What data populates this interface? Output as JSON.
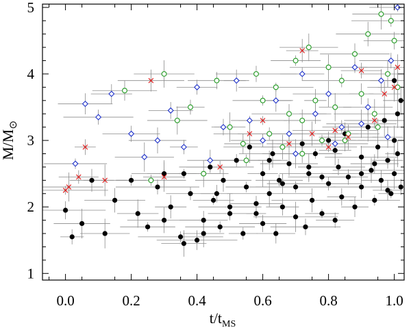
{
  "chart_data": {
    "type": "scatter",
    "title": "",
    "xlabel": "t/t",
    "xlabel_sub": "MS",
    "ylabel": "M/M",
    "ylabel_symbol": "⊙",
    "xlim": [
      -0.07,
      1.03
    ],
    "ylim": [
      0.9,
      5.05
    ],
    "x_ticks": [
      0.0,
      0.2,
      0.4,
      0.6,
      0.8,
      1.0
    ],
    "x_tick_labels": [
      "0.0",
      "0.2",
      "0.4",
      "0.6",
      "0.8",
      "1.0"
    ],
    "y_ticks": [
      1,
      2,
      3,
      4,
      5
    ],
    "y_tick_labels": [
      "1",
      "2",
      "3",
      "4",
      "5"
    ],
    "grid": false,
    "legend": "none",
    "series": [
      {
        "name": "black filled circles",
        "marker": "filled-circle",
        "color": "#000000",
        "x": [
          0.0,
          0.02,
          0.05,
          0.08,
          0.12,
          0.15,
          0.2,
          0.22,
          0.25,
          0.28,
          0.3,
          0.32,
          0.35,
          0.36,
          0.38,
          0.4,
          0.42,
          0.44,
          0.45,
          0.47,
          0.48,
          0.5,
          0.52,
          0.54,
          0.55,
          0.56,
          0.58,
          0.6,
          0.6,
          0.62,
          0.63,
          0.64,
          0.65,
          0.66,
          0.68,
          0.7,
          0.7,
          0.72,
          0.73,
          0.74,
          0.75,
          0.76,
          0.78,
          0.8,
          0.8,
          0.82,
          0.83,
          0.84,
          0.85,
          0.86,
          0.88,
          0.9,
          0.9,
          0.92,
          0.93,
          0.94,
          0.95,
          0.96,
          0.97,
          0.98,
          0.99,
          1.0,
          1.0,
          1.01,
          1.01,
          1.02,
          1.02,
          0.36,
          0.42,
          0.5,
          0.58,
          0.66,
          0.74,
          0.82,
          0.9,
          0.98,
          0.3,
          0.46,
          0.62,
          0.78,
          0.94,
          1.0
        ],
        "y": [
          1.95,
          1.55,
          1.75,
          2.4,
          1.6,
          2.1,
          2.4,
          1.9,
          1.7,
          2.3,
          1.8,
          2.0,
          1.55,
          2.5,
          2.2,
          1.5,
          1.8,
          2.6,
          2.1,
          1.7,
          2.4,
          2.0,
          2.7,
          1.6,
          2.3,
          2.9,
          1.9,
          2.5,
          1.75,
          2.2,
          2.8,
          1.6,
          2.4,
          2.0,
          2.65,
          1.85,
          2.3,
          2.95,
          1.7,
          2.5,
          2.1,
          2.8,
          1.9,
          2.35,
          3.0,
          1.8,
          2.6,
          2.15,
          3.1,
          2.45,
          2.0,
          2.75,
          2.3,
          3.2,
          2.55,
          2.1,
          2.9,
          2.4,
          3.3,
          2.7,
          2.2,
          3.0,
          2.5,
          3.4,
          2.8,
          2.3,
          3.6,
          1.45,
          1.6,
          1.9,
          2.05,
          2.35,
          2.6,
          2.85,
          2.5,
          2.25,
          2.5,
          2.2,
          2.7,
          2.45,
          2.65,
          3.9
        ]
      },
      {
        "name": "green open circles",
        "marker": "open-circle",
        "color": "#2ea02e",
        "x": [
          0.18,
          0.26,
          0.3,
          0.34,
          0.38,
          0.42,
          0.46,
          0.5,
          0.54,
          0.58,
          0.6,
          0.62,
          0.64,
          0.66,
          0.68,
          0.7,
          0.72,
          0.74,
          0.76,
          0.78,
          0.8,
          0.82,
          0.84,
          0.86,
          0.88,
          0.9,
          0.92,
          0.94,
          0.96,
          0.98,
          1.0,
          1.01,
          0.55,
          0.72,
          0.85,
          0.95,
          0.99
        ],
        "y": [
          3.75,
          2.4,
          4.0,
          3.3,
          3.5,
          2.5,
          3.9,
          3.2,
          2.95,
          4.0,
          3.6,
          3.1,
          3.8,
          2.9,
          3.4,
          4.2,
          3.3,
          4.4,
          3.6,
          3.0,
          4.1,
          3.5,
          3.9,
          3.1,
          4.3,
          3.7,
          4.6,
          3.4,
          4.9,
          4.0,
          4.5,
          3.8,
          2.7,
          2.8,
          3.0,
          3.2,
          4.8
        ]
      },
      {
        "name": "blue open diamonds",
        "marker": "open-diamond",
        "color": "#1c2fc8",
        "x": [
          0.03,
          0.06,
          0.1,
          0.14,
          0.2,
          0.24,
          0.28,
          0.32,
          0.36,
          0.4,
          0.44,
          0.48,
          0.52,
          0.56,
          0.6,
          0.64,
          0.68,
          0.72,
          0.76,
          0.8,
          0.84,
          0.88,
          0.92,
          0.96,
          0.99,
          1.01,
          0.7,
          0.82,
          0.9,
          0.98
        ],
        "y": [
          2.65,
          3.55,
          3.35,
          3.7,
          3.1,
          2.75,
          3.0,
          3.45,
          2.9,
          3.8,
          2.7,
          3.2,
          3.9,
          3.3,
          3.0,
          3.6,
          3.1,
          4.0,
          3.4,
          3.7,
          3.2,
          4.1,
          3.5,
          3.9,
          4.2,
          5.0,
          2.8,
          2.95,
          3.25,
          3.05
        ]
      },
      {
        "name": "red crosses",
        "marker": "x-cross",
        "color": "#e02020",
        "x": [
          0.0,
          0.01,
          0.04,
          0.06,
          0.12,
          0.26,
          0.3,
          0.47,
          0.56,
          0.6,
          0.68,
          0.72,
          0.75,
          0.8,
          0.82,
          0.86,
          0.9,
          0.94,
          0.97,
          1.0,
          1.01
        ],
        "y": [
          2.25,
          2.3,
          2.45,
          2.9,
          2.4,
          3.9,
          2.45,
          2.6,
          3.1,
          3.3,
          2.95,
          4.35,
          3.1,
          2.9,
          3.15,
          3.05,
          4.05,
          3.3,
          3.7,
          3.8,
          4.1
        ]
      }
    ]
  }
}
